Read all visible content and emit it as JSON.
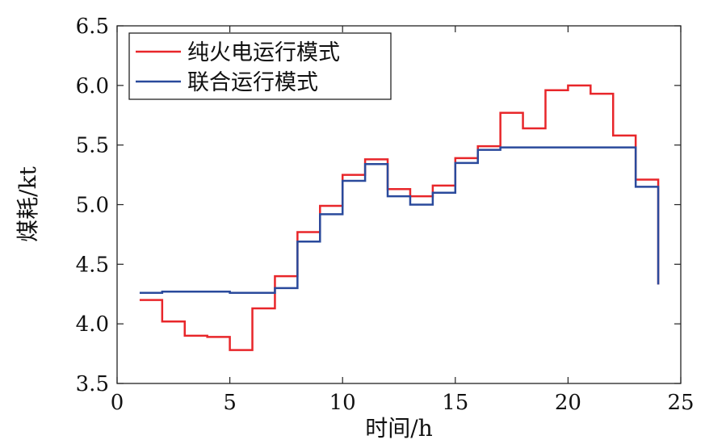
{
  "chart_data": {
    "type": "line",
    "xlabel": "时间/h",
    "ylabel": "煤耗/kt",
    "xlim": [
      0,
      25
    ],
    "ylim": [
      3.5,
      6.5
    ],
    "xticks": [
      0,
      5,
      10,
      15,
      20,
      25
    ],
    "yticks": [
      3.5,
      4.0,
      4.5,
      5.0,
      5.5,
      6.0,
      6.5
    ],
    "xtick_labels": [
      "0",
      "5",
      "10",
      "15",
      "20",
      "25"
    ],
    "ytick_labels": [
      "3.5",
      "4.0",
      "4.5",
      "5.0",
      "5.5",
      "6.0",
      "6.5"
    ],
    "grid": false,
    "legend_position": "top-left",
    "step": true,
    "x": [
      1,
      2,
      3,
      4,
      5,
      6,
      7,
      8,
      9,
      10,
      11,
      12,
      13,
      14,
      15,
      16,
      17,
      18,
      19,
      20,
      21,
      22,
      23,
      24
    ],
    "series": [
      {
        "name": "纯火电运行模式",
        "color": "#e8262a",
        "values": [
          4.2,
          4.02,
          3.9,
          3.89,
          3.78,
          4.13,
          4.4,
          4.77,
          4.99,
          5.25,
          5.38,
          5.13,
          5.07,
          5.16,
          5.39,
          5.49,
          5.77,
          5.64,
          5.96,
          6.0,
          5.93,
          5.58,
          5.21,
          4.33
        ]
      },
      {
        "name": "联合运行模式",
        "color": "#2a4a9c",
        "values": [
          4.26,
          4.27,
          4.27,
          4.27,
          4.26,
          4.26,
          4.3,
          4.69,
          4.92,
          5.2,
          5.34,
          5.07,
          5.0,
          5.1,
          5.35,
          5.46,
          5.48,
          5.48,
          5.48,
          5.48,
          5.48,
          5.48,
          5.15,
          4.33
        ]
      }
    ]
  }
}
